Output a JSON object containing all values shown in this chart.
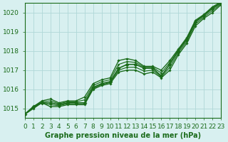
{
  "title": "Graphe pression niveau de la mer (hPa)",
  "bg_color": "#d8f0f0",
  "grid_color": "#b0d8d8",
  "line_color": "#1a6b1a",
  "xlim": [
    0,
    23
  ],
  "ylim": [
    1014.5,
    1020.5
  ],
  "xticks": [
    0,
    1,
    2,
    3,
    4,
    5,
    6,
    7,
    8,
    9,
    10,
    11,
    12,
    13,
    14,
    15,
    16,
    17,
    18,
    19,
    20,
    21,
    22,
    23
  ],
  "yticks": [
    1015,
    1016,
    1017,
    1018,
    1019,
    1020
  ],
  "series_x": [
    0,
    1,
    2,
    3,
    4,
    5,
    6,
    7,
    8,
    9,
    10,
    11,
    12,
    13,
    14,
    15,
    16,
    17,
    18,
    19,
    20,
    21,
    22,
    23
  ],
  "main_series": [
    1014.7,
    1015.1,
    1015.3,
    1015.3,
    1015.2,
    1015.3,
    1015.3,
    1015.3,
    1016.1,
    1016.3,
    1016.4,
    1017.1,
    1017.3,
    1017.3,
    1017.1,
    1017.1,
    1016.7,
    1017.3,
    1018.0,
    1018.6,
    1019.5,
    1019.85,
    1020.2,
    1020.5
  ],
  "envelope_upper": [
    1014.7,
    1015.1,
    1015.4,
    1015.5,
    1015.3,
    1015.4,
    1015.4,
    1015.6,
    1016.3,
    1016.5,
    1016.6,
    1017.5,
    1017.6,
    1017.5,
    1017.2,
    1017.2,
    1017.0,
    1017.5,
    1018.1,
    1018.7,
    1019.6,
    1019.9,
    1020.3,
    1020.55
  ],
  "envelope_lower": [
    1014.7,
    1015.0,
    1015.3,
    1015.1,
    1015.1,
    1015.2,
    1015.2,
    1015.2,
    1016.0,
    1016.2,
    1016.3,
    1016.9,
    1017.0,
    1017.0,
    1016.8,
    1016.9,
    1016.6,
    1017.0,
    1017.8,
    1018.4,
    1019.3,
    1019.7,
    1020.0,
    1020.4
  ],
  "line_width": 1.2,
  "marker_size": 3,
  "label_fontsize": 7,
  "tick_fontsize": 6.5
}
